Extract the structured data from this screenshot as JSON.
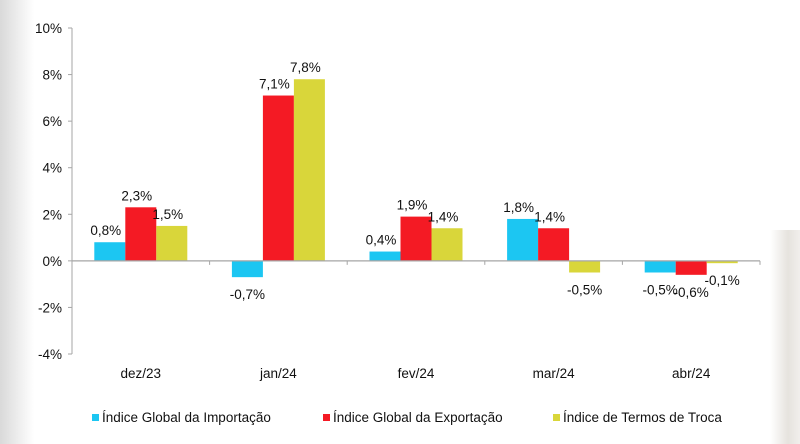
{
  "chart_data": {
    "type": "bar",
    "title": "",
    "xlabel": "",
    "ylabel": "",
    "categories": [
      "dez/23",
      "jan/24",
      "fev/24",
      "mar/24",
      "abr/24"
    ],
    "series": [
      {
        "name": "Índice Global da Importação",
        "color": "#1cc6f2",
        "values": [
          0.8,
          -0.7,
          0.4,
          1.8,
          -0.5
        ],
        "labels": [
          "0,8%",
          "-0,7%",
          "0,4%",
          "1,8%",
          "-0,5%"
        ]
      },
      {
        "name": "Índice Global da Exportação",
        "color": "#f41a24",
        "values": [
          2.3,
          7.1,
          1.9,
          1.4,
          -0.6
        ],
        "labels": [
          "2,3%",
          "7,1%",
          "1,9%",
          "1,4%",
          "-0,6%"
        ]
      },
      {
        "name": "Índice de Termos de Troca",
        "color": "#d9d63a",
        "values": [
          1.5,
          7.8,
          1.4,
          -0.5,
          -0.1
        ],
        "labels": [
          "1,5%",
          "7,8%",
          "1,4%",
          "-0,5%",
          "-0,1%"
        ]
      }
    ],
    "ylim": [
      -4,
      10
    ],
    "yticks": [
      10,
      8,
      6,
      4,
      2,
      0,
      -2,
      -4
    ],
    "ytick_labels": [
      "10%",
      "8%",
      "6%",
      "4%",
      "2%",
      "0%",
      "-2%",
      "-4%"
    ],
    "grid": false,
    "legend_position": "bottom"
  },
  "legend": {
    "items": [
      {
        "label": "Índice Global da Importação",
        "color": "#1cc6f2"
      },
      {
        "label": "Índice Global da Exportação",
        "color": "#f41a24"
      },
      {
        "label": "Índice de Termos de Troca",
        "color": "#d9d63a"
      }
    ]
  }
}
